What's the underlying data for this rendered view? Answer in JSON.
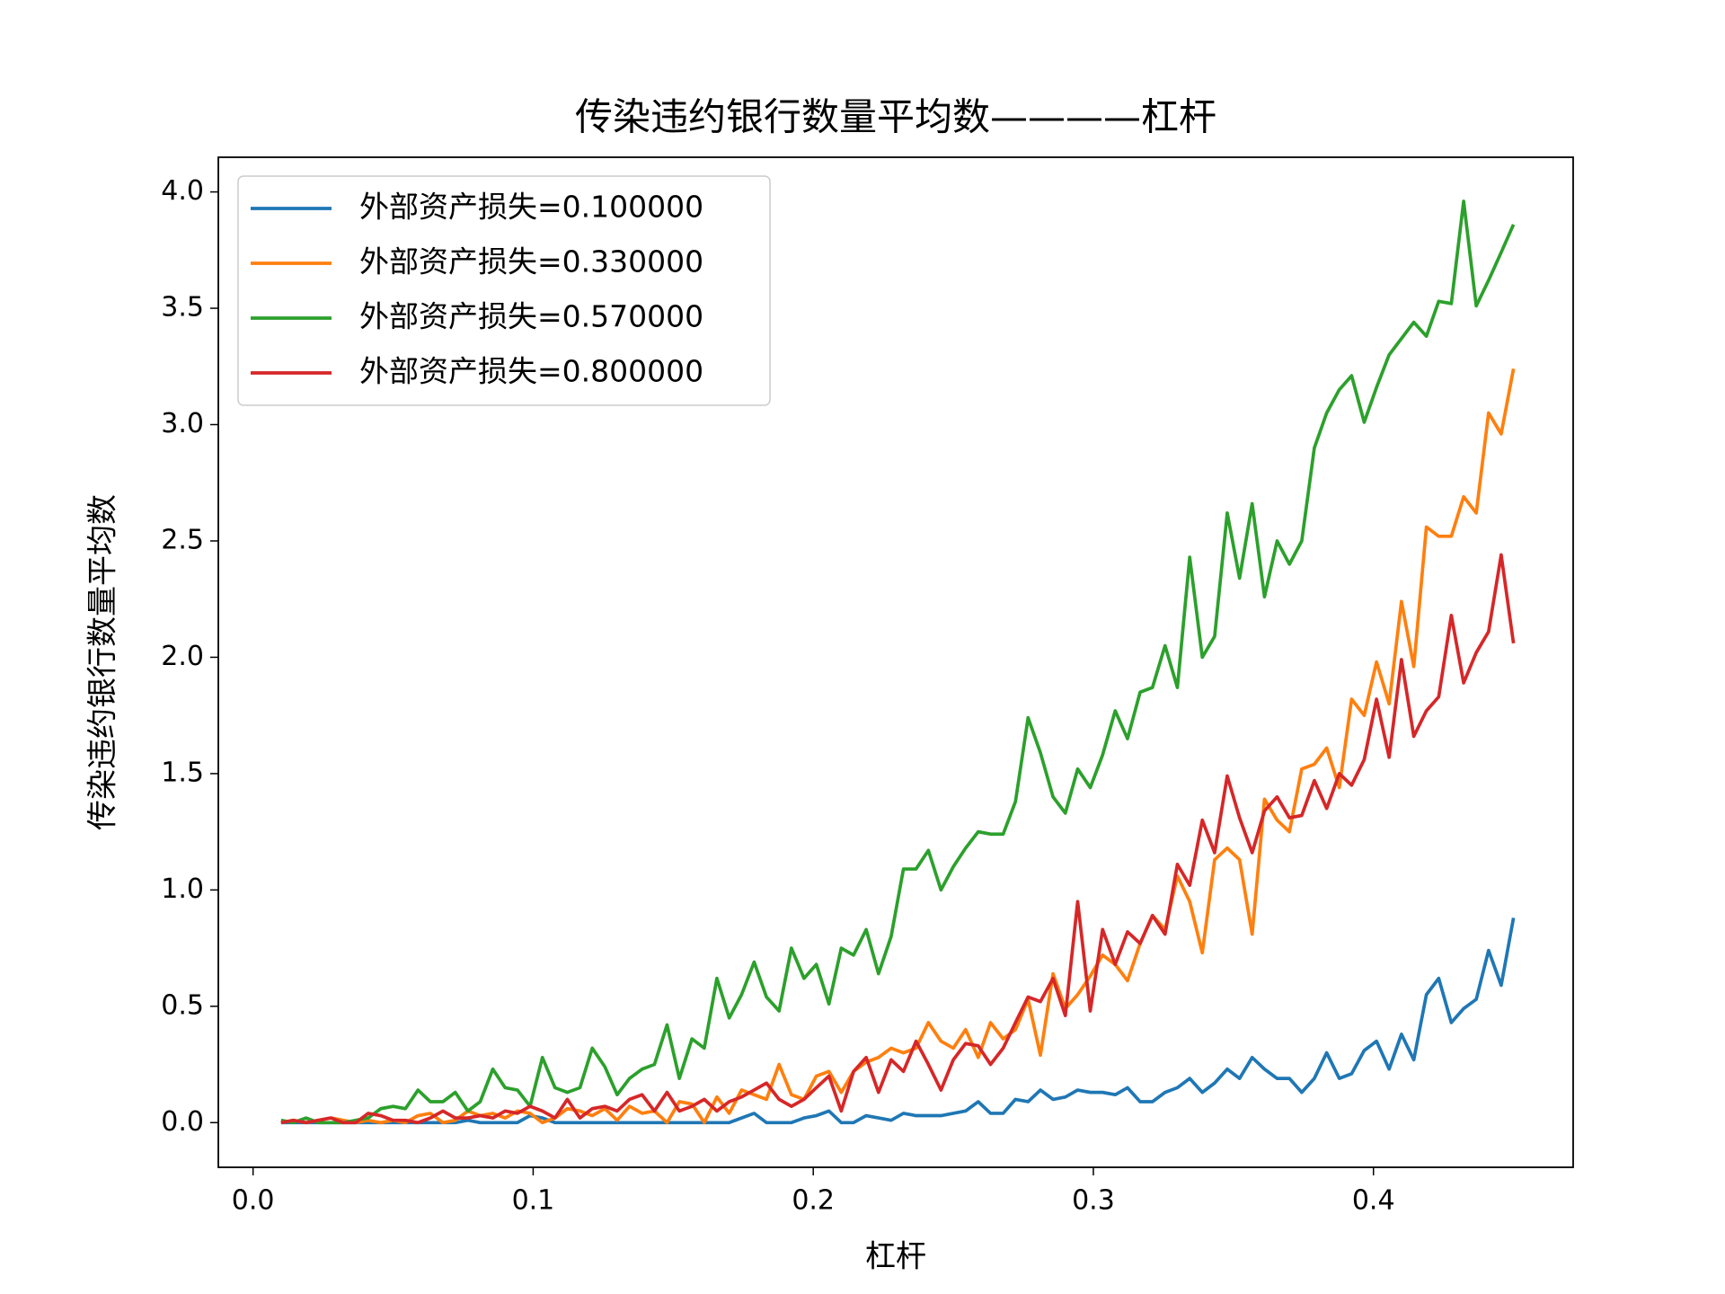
{
  "chart_data": {
    "type": "line",
    "title": "传染违约银行数量平均数————杠杆",
    "xlabel": "杠杆",
    "ylabel": "传染违约银行数量平均数",
    "x": [
      0.01,
      0.0144,
      0.0189,
      0.0233,
      0.0278,
      0.0322,
      0.0367,
      0.0411,
      0.0456,
      0.05,
      0.0544,
      0.0589,
      0.0633,
      0.0678,
      0.0722,
      0.0767,
      0.0811,
      0.0856,
      0.09,
      0.0944,
      0.0989,
      0.1033,
      0.1078,
      0.1122,
      0.1167,
      0.1211,
      0.1256,
      0.13,
      0.1344,
      0.1389,
      0.1433,
      0.1478,
      0.1522,
      0.1567,
      0.1611,
      0.1656,
      0.17,
      0.1744,
      0.1789,
      0.1833,
      0.1878,
      0.1922,
      0.1967,
      0.2011,
      0.2056,
      0.21,
      0.2144,
      0.2189,
      0.2233,
      0.2278,
      0.2322,
      0.2367,
      0.2411,
      0.2456,
      0.25,
      0.2544,
      0.2589,
      0.2633,
      0.2678,
      0.2722,
      0.2767,
      0.2811,
      0.2856,
      0.29,
      0.2944,
      0.2989,
      0.3033,
      0.3078,
      0.3122,
      0.3167,
      0.3211,
      0.3256,
      0.33,
      0.3344,
      0.3389,
      0.3433,
      0.3478,
      0.3522,
      0.3567,
      0.3611,
      0.3656,
      0.37,
      0.3744,
      0.3789,
      0.3833,
      0.3878,
      0.3922,
      0.3967,
      0.4011,
      0.4056,
      0.41,
      0.4144,
      0.4189,
      0.4233,
      0.4278,
      0.4322,
      0.4367,
      0.4411,
      0.4456,
      0.45
    ],
    "series": [
      {
        "name": "外部资产损失=0.100000",
        "color": "#1f77b4",
        "values": [
          0,
          0,
          0,
          0,
          0,
          0,
          0,
          0,
          0,
          0,
          0,
          0,
          0,
          0,
          0,
          0.01,
          0,
          0,
          0,
          0,
          0.03,
          0.02,
          0,
          0,
          0,
          0,
          0,
          0,
          0,
          0,
          0,
          0,
          0,
          0,
          0,
          0,
          0,
          0.02,
          0.04,
          0,
          0,
          0,
          0.02,
          0.03,
          0.05,
          0,
          0,
          0.03,
          0.02,
          0.01,
          0.04,
          0.03,
          0.03,
          0.03,
          0.04,
          0.05,
          0.09,
          0.04,
          0.04,
          0.1,
          0.09,
          0.14,
          0.1,
          0.11,
          0.14,
          0.13,
          0.13,
          0.12,
          0.15,
          0.09,
          0.09,
          0.13,
          0.15,
          0.19,
          0.13,
          0.17,
          0.23,
          0.19,
          0.28,
          0.23,
          0.19,
          0.19,
          0.13,
          0.19,
          0.3,
          0.19,
          0.21,
          0.31,
          0.35,
          0.23,
          0.38,
          0.27,
          0.55,
          0.62,
          0.43,
          0.49,
          0.53,
          0.74,
          0.59,
          0.88
        ]
      },
      {
        "name": "外部资产损失=0.330000",
        "color": "#ff7f0e",
        "values": [
          0,
          0.01,
          0,
          0.01,
          0.02,
          0.01,
          0,
          0.01,
          0,
          0.01,
          0,
          0.03,
          0.04,
          0,
          0.01,
          0.05,
          0.03,
          0.04,
          0.02,
          0.05,
          0.04,
          0,
          0.02,
          0.06,
          0.05,
          0.03,
          0.06,
          0.01,
          0.07,
          0.04,
          0.05,
          0,
          0.09,
          0.08,
          0,
          0.11,
          0.04,
          0.14,
          0.12,
          0.1,
          0.25,
          0.12,
          0.1,
          0.2,
          0.22,
          0.13,
          0.22,
          0.26,
          0.28,
          0.32,
          0.3,
          0.32,
          0.43,
          0.35,
          0.32,
          0.4,
          0.28,
          0.43,
          0.36,
          0.4,
          0.53,
          0.29,
          0.64,
          0.49,
          0.55,
          0.63,
          0.72,
          0.68,
          0.61,
          0.77,
          0.89,
          0.83,
          1.06,
          0.95,
          0.73,
          1.13,
          1.18,
          1.13,
          0.81,
          1.39,
          1.3,
          1.25,
          1.52,
          1.54,
          1.61,
          1.44,
          1.82,
          1.75,
          1.98,
          1.8,
          2.24,
          1.96,
          2.56,
          2.52,
          2.52,
          2.69,
          2.62,
          3.05,
          2.96,
          3.24
        ]
      },
      {
        "name": "外部资产损失=0.570000",
        "color": "#2ca02c",
        "values": [
          0.01,
          0,
          0.02,
          0,
          0,
          0,
          0.01,
          0.02,
          0.06,
          0.07,
          0.06,
          0.14,
          0.09,
          0.09,
          0.13,
          0.05,
          0.09,
          0.23,
          0.15,
          0.14,
          0.07,
          0.28,
          0.15,
          0.13,
          0.15,
          0.32,
          0.24,
          0.12,
          0.19,
          0.23,
          0.25,
          0.42,
          0.19,
          0.36,
          0.32,
          0.62,
          0.45,
          0.55,
          0.69,
          0.54,
          0.48,
          0.75,
          0.62,
          0.68,
          0.51,
          0.75,
          0.72,
          0.83,
          0.64,
          0.8,
          1.09,
          1.09,
          1.17,
          1,
          1.1,
          1.18,
          1.25,
          1.24,
          1.24,
          1.38,
          1.74,
          1.59,
          1.4,
          1.33,
          1.52,
          1.44,
          1.58,
          1.77,
          1.65,
          1.85,
          1.87,
          2.05,
          1.87,
          2.43,
          2,
          2.09,
          2.62,
          2.34,
          2.66,
          2.26,
          2.5,
          2.4,
          2.5,
          2.9,
          3.05,
          3.15,
          3.21,
          3.01,
          3.16,
          3.3,
          3.37,
          3.44,
          3.38,
          3.53,
          3.52,
          3.96,
          3.51,
          3.62,
          3.74,
          3.86
        ]
      },
      {
        "name": "外部资产损失=0.800000",
        "color": "#d62728",
        "values": [
          0,
          0.01,
          0,
          0.01,
          0.02,
          0,
          0,
          0.04,
          0.03,
          0.01,
          0.01,
          0,
          0.02,
          0.05,
          0.02,
          0.02,
          0.03,
          0.02,
          0.05,
          0.04,
          0.07,
          0.05,
          0.02,
          0.1,
          0.02,
          0.06,
          0.07,
          0.05,
          0.1,
          0.12,
          0.05,
          0.13,
          0.05,
          0.07,
          0.1,
          0.05,
          0.09,
          0.11,
          0.14,
          0.17,
          0.1,
          0.07,
          0.1,
          0.15,
          0.2,
          0.05,
          0.22,
          0.28,
          0.13,
          0.27,
          0.22,
          0.35,
          0.25,
          0.14,
          0.27,
          0.34,
          0.33,
          0.25,
          0.32,
          0.43,
          0.54,
          0.52,
          0.62,
          0.46,
          0.95,
          0.48,
          0.83,
          0.68,
          0.82,
          0.77,
          0.89,
          0.81,
          1.11,
          1.02,
          1.3,
          1.16,
          1.49,
          1.31,
          1.16,
          1.34,
          1.4,
          1.31,
          1.32,
          1.47,
          1.35,
          1.5,
          1.45,
          1.56,
          1.82,
          1.57,
          1.99,
          1.66,
          1.77,
          1.83,
          2.18,
          1.89,
          2.02,
          2.11,
          2.44,
          2.06
        ]
      }
    ],
    "xlim": [
      -0.0124,
      0.4713
    ],
    "ylim": [
      -0.192,
      4.149
    ],
    "xticks": [
      {
        "value": 0,
        "label": "0.0"
      },
      0.1,
      0.2,
      0.3,
      0.4
    ],
    "yticks": [
      {
        "value": 0,
        "label": "0.0"
      },
      0.5,
      {
        "value": 1,
        "label": "1.0"
      },
      1.5,
      {
        "value": 2,
        "label": "2.0"
      },
      2.5,
      {
        "value": 3,
        "label": "3.0"
      },
      3.5,
      {
        "value": 4,
        "label": "4.0"
      }
    ],
    "legend": "upper left",
    "grid": false
  }
}
